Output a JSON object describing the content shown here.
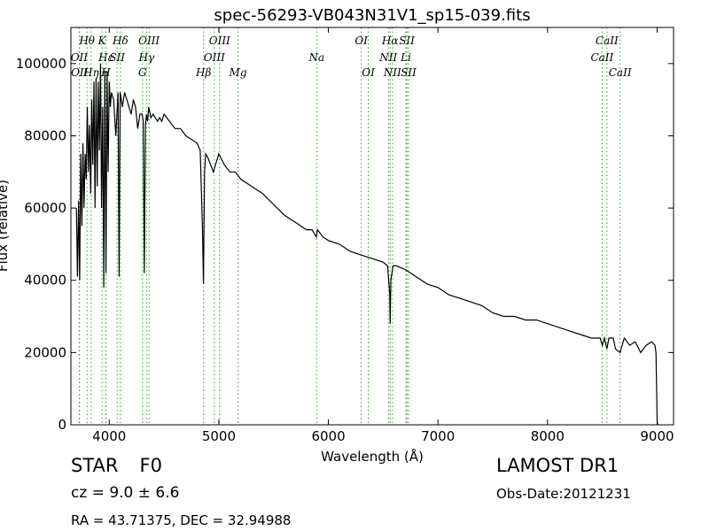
{
  "chart_data": {
    "type": "line",
    "title": "spec-56293-VB043N31V1_sp15-039.fits",
    "xlabel": "Wavelength (Å)",
    "ylabel": "Flux (relative)",
    "xlim": [
      3650,
      9150
    ],
    "ylim": [
      0,
      110000
    ],
    "xticks": [
      4000,
      5000,
      6000,
      7000,
      8000,
      9000
    ],
    "yticks": [
      0,
      20000,
      40000,
      60000,
      80000,
      100000
    ],
    "grid": false,
    "line_color": "#000000",
    "marker_color": "#2ca02c",
    "series": [
      {
        "x": [
          3700,
          3710,
          3720,
          3730,
          3740,
          3750,
          3760,
          3770,
          3780,
          3790,
          3800,
          3810,
          3820,
          3830,
          3840,
          3850,
          3860,
          3870,
          3880,
          3890,
          3900,
          3910,
          3920,
          3930,
          3940,
          3950,
          3960,
          3970,
          3980,
          3990,
          4000,
          4010,
          4020,
          4040,
          4060,
          4080,
          4090,
          4100,
          4110,
          4120,
          4140,
          4160,
          4180,
          4200,
          4220,
          4240,
          4260,
          4280,
          4300,
          4310,
          4320,
          4330,
          4340,
          4350,
          4360,
          4380,
          4400,
          4420,
          4440,
          4460,
          4480,
          4500,
          4550,
          4600,
          4650,
          4700,
          4750,
          4800,
          4830,
          4850,
          4860,
          4865,
          4870,
          4880,
          4900,
          4950,
          5000,
          5050,
          5100,
          5150,
          5200,
          5300,
          5400,
          5500,
          5600,
          5700,
          5800,
          5850,
          5890,
          5900,
          5950,
          6000,
          6100,
          6200,
          6300,
          6400,
          6500,
          6540,
          6560,
          6563,
          6570,
          6590,
          6620,
          6700,
          6800,
          6900,
          7000,
          7100,
          7200,
          7300,
          7400,
          7500,
          7600,
          7700,
          7800,
          7900,
          8000,
          8100,
          8200,
          8300,
          8400,
          8480,
          8500,
          8520,
          8542,
          8560,
          8600,
          8620,
          8662,
          8700,
          8750,
          8800,
          8850,
          8900,
          8950,
          8980,
          8990,
          9000,
          9005
        ],
        "y": [
          60000,
          41000,
          62000,
          40000,
          75000,
          55000,
          78000,
          60000,
          75000,
          68000,
          88000,
          70000,
          83000,
          64000,
          90000,
          72000,
          95000,
          60000,
          96000,
          66000,
          95000,
          76000,
          100000,
          60000,
          88000,
          38000,
          98000,
          42000,
          98000,
          70000,
          95000,
          88000,
          92000,
          90000,
          80000,
          92000,
          41000,
          92000,
          90000,
          88000,
          92000,
          90000,
          88000,
          86000,
          90000,
          88000,
          82000,
          86000,
          86000,
          84000,
          42000,
          83000,
          86000,
          84000,
          88000,
          85000,
          86000,
          85000,
          84000,
          85000,
          84000,
          86000,
          84000,
          82000,
          82000,
          80000,
          79000,
          78000,
          76000,
          55000,
          39000,
          55000,
          70000,
          75000,
          74000,
          70000,
          75000,
          72000,
          70000,
          70000,
          68000,
          66000,
          64000,
          61000,
          58000,
          56000,
          54000,
          54000,
          52000,
          54000,
          52000,
          51000,
          50000,
          48000,
          47000,
          46000,
          45000,
          44000,
          36000,
          28000,
          40000,
          44000,
          44000,
          43000,
          41000,
          39000,
          38000,
          36000,
          35000,
          34000,
          33000,
          31000,
          30000,
          30000,
          29000,
          29000,
          28000,
          27000,
          26000,
          25000,
          24000,
          24000,
          22000,
          24000,
          21000,
          24000,
          24000,
          21000,
          20000,
          24000,
          22000,
          23000,
          20000,
          22000,
          23000,
          22000,
          20000,
          1000,
          0
        ]
      }
    ],
    "lines": [
      {
        "label": "Hθ",
        "row": 0,
        "x": 3797
      },
      {
        "label": "K",
        "row": 0,
        "x": 3934
      },
      {
        "label": "Hδ",
        "row": 0,
        "x": 4102
      },
      {
        "label": "OIII",
        "row": 0,
        "x": 4363
      },
      {
        "label": "OIII",
        "row": 0,
        "x": 5007
      },
      {
        "label": "OI",
        "row": 0,
        "x": 6300
      },
      {
        "label": "Hα",
        "row": 0,
        "x": 6563
      },
      {
        "label": "SII",
        "row": 0,
        "x": 6716
      },
      {
        "label": "CaII",
        "row": 0,
        "x": 8542
      },
      {
        "label": "OII",
        "row": 1,
        "x": 3726
      },
      {
        "label": "Hε",
        "row": 1,
        "x": 3970
      },
      {
        "label": "SII",
        "row": 1,
        "x": 4072
      },
      {
        "label": "Hγ",
        "row": 1,
        "x": 4340
      },
      {
        "label": "OIII",
        "row": 1,
        "x": 4959
      },
      {
        "label": "Na",
        "row": 1,
        "x": 5893
      },
      {
        "label": "NII",
        "row": 1,
        "x": 6548
      },
      {
        "label": "Li",
        "row": 1,
        "x": 6708
      },
      {
        "label": "CaII",
        "row": 1,
        "x": 8498
      },
      {
        "label": "OII",
        "row": 2,
        "x": 3729
      },
      {
        "label": "Hη",
        "row": 2,
        "x": 3835
      },
      {
        "label": "H",
        "row": 2,
        "x": 3969
      },
      {
        "label": "G",
        "row": 2,
        "x": 4304
      },
      {
        "label": "Hβ",
        "row": 2,
        "x": 4861
      },
      {
        "label": "Mg",
        "row": 2,
        "x": 5175
      },
      {
        "label": "OI",
        "row": 2,
        "x": 6364
      },
      {
        "label": "NII",
        "row": 2,
        "x": 6584
      },
      {
        "label": "SII",
        "row": 2,
        "x": 6731
      },
      {
        "label": "CaII",
        "row": 2,
        "x": 8662
      }
    ]
  },
  "info": {
    "class_label": "STAR",
    "subclass": "F0",
    "redshift": "cz = 9.0 ± 6.6",
    "coords": "RA = 43.71375, DEC = 32.94988",
    "survey": "LAMOST DR1",
    "obs_date": "Obs-Date:20121231"
  }
}
